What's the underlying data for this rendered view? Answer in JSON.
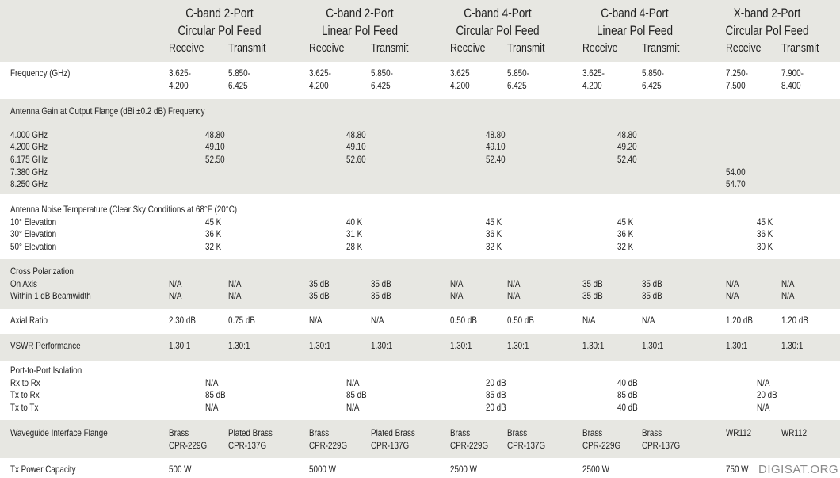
{
  "columns": [
    {
      "band": "C-band 2-Port",
      "feed": "Circular Pol Feed",
      "receive": "Receive",
      "transmit": "Transmit"
    },
    {
      "band": "C-band 2-Port",
      "feed": "Linear Pol Feed",
      "receive": "Receive",
      "transmit": "Transmit"
    },
    {
      "band": "C-band 4-Port",
      "feed": "Circular Pol Feed",
      "receive": "Receive",
      "transmit": "Transmit"
    },
    {
      "band": "C-band 4-Port",
      "feed": "Linear Pol Feed",
      "receive": "Receive",
      "transmit": "Transmit"
    },
    {
      "band": "X-band 2-Port",
      "feed": "Circular Pol Feed",
      "receive": "Receive",
      "transmit": "Transmit"
    }
  ],
  "sections": [
    {
      "lines": [
        {
          "label": "Frequency (GHz)",
          "cells": [
            [
              "3.625-\n4.200",
              "5.850-\n6.425"
            ],
            [
              "3.625-\n4.200",
              "5.850-\n6.425"
            ],
            [
              "3.625\n4.200",
              "5.850-\n6.425"
            ],
            [
              "3.625-\n4.200",
              "5.850-\n6.425"
            ],
            [
              "7.250-\n7.500",
              "7.900-\n8.400"
            ]
          ]
        }
      ]
    },
    {
      "title": "Antenna Gain at Output Flange (dBi ±0.2 dB) Frequency",
      "lines": [
        {
          "label": "4.000 GHz",
          "cells": [
            "48.80",
            "48.80",
            "48.80",
            "48.80",
            null
          ]
        },
        {
          "label": "4.200 GHz",
          "cells": [
            "49.10",
            "49.10",
            "49.10",
            "49.20",
            null
          ]
        },
        {
          "label": "6.175 GHz",
          "cells": [
            "52.50",
            "52.60",
            "52.40",
            "52.40",
            null
          ]
        },
        {
          "label": "7.380 GHz",
          "cells": [
            null,
            null,
            null,
            null,
            "54.00"
          ]
        },
        {
          "label": "8.250 GHz",
          "cells": [
            null,
            null,
            null,
            null,
            "54.70"
          ]
        }
      ]
    },
    {
      "title": "Antenna Noise Temperature (Clear Sky Conditions at 68°F (20°C)",
      "lines": [
        {
          "label": "10° Elevation",
          "cells": [
            "45 K",
            "40 K",
            "45 K",
            "45 K",
            "45 K"
          ]
        },
        {
          "label": "30° Elevation",
          "cells": [
            "36 K",
            "31 K",
            "36 K",
            "36 K",
            "36 K"
          ]
        },
        {
          "label": "50° Elevation",
          "cells": [
            "32 K",
            "28 K",
            "32 K",
            "32 K",
            "30 K"
          ]
        }
      ]
    },
    {
      "title": "Cross Polarization",
      "lines": [
        {
          "label": "On Axis",
          "cells": [
            [
              "N/A",
              "N/A"
            ],
            [
              "35 dB",
              "35 dB"
            ],
            [
              "N/A",
              "N/A"
            ],
            [
              "35 dB",
              "35 dB"
            ],
            [
              "N/A",
              "N/A"
            ]
          ]
        },
        {
          "label": "Within 1 dB Beamwidth",
          "cells": [
            [
              "N/A",
              "N/A"
            ],
            [
              "35 dB",
              "35 dB"
            ],
            [
              "N/A",
              "N/A"
            ],
            [
              "35 dB",
              "35 dB"
            ],
            [
              "N/A",
              "N/A"
            ]
          ]
        }
      ]
    },
    {
      "lines": [
        {
          "label": "Axial Ratio",
          "cells": [
            [
              "2.30 dB",
              "0.75 dB"
            ],
            [
              "N/A",
              "N/A"
            ],
            [
              "0.50 dB",
              "0.50 dB"
            ],
            [
              "N/A",
              "N/A"
            ],
            [
              "1.20 dB",
              "1.20 dB"
            ]
          ]
        }
      ]
    },
    {
      "lines": [
        {
          "label": "VSWR Performance",
          "cells": [
            [
              "1.30:1",
              "1.30:1"
            ],
            [
              "1.30:1",
              "1.30:1"
            ],
            [
              "1.30:1",
              "1.30:1"
            ],
            [
              "1.30:1",
              "1.30:1"
            ],
            [
              "1.30:1",
              "1.30:1"
            ]
          ]
        }
      ]
    },
    {
      "title": "Port-to-Port Isolation",
      "lines": [
        {
          "label": "Rx to Rx",
          "cells": [
            "N/A",
            "N/A",
            "20 dB",
            "40 dB",
            "N/A"
          ]
        },
        {
          "label": "Tx to Rx",
          "cells": [
            "85 dB",
            "85 dB",
            "85 dB",
            "85 dB",
            "20 dB"
          ]
        },
        {
          "label": "Tx to Tx",
          "cells": [
            "N/A",
            "N/A",
            "20 dB",
            "40 dB",
            "N/A"
          ]
        }
      ]
    },
    {
      "lines": [
        {
          "label": "Waveguide Interface Flange",
          "cells": [
            [
              "Brass\nCPR-229G",
              "Plated Brass\nCPR-137G"
            ],
            [
              "Brass\nCPR-229G",
              "Plated Brass\nCPR-137G"
            ],
            [
              "Brass\nCPR-229G",
              "Brass\nCPR-137G"
            ],
            [
              "Brass\nCPR-229G",
              "Brass\nCPR-137G"
            ],
            [
              "WR112",
              "WR112"
            ]
          ]
        }
      ]
    },
    {
      "lines": [
        {
          "label": "Tx Power Capacity",
          "cells": [
            [
              "500 W",
              null
            ],
            [
              "5000 W",
              null
            ],
            [
              "2500 W",
              null
            ],
            [
              "2500 W",
              null
            ],
            [
              "750 W",
              null
            ]
          ]
        }
      ]
    }
  ],
  "watermark": "DIGISAT.ORG"
}
